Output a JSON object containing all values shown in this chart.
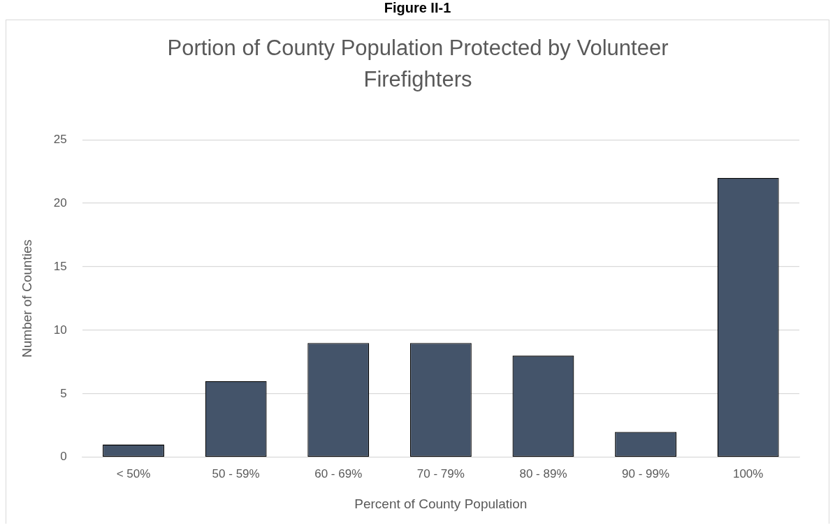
{
  "chart_data": {
    "type": "bar",
    "title": "Portion of County Population Protected by Volunteer Firefighters",
    "annotations": [
      "Figure II-1"
    ],
    "xlabel": "Percent of County Population",
    "ylabel": "Number of Counties",
    "categories": [
      "< 50%",
      "50 - 59%",
      "60 - 69%",
      "70 - 79%",
      "80 - 89%",
      "90 - 99%",
      "100%"
    ],
    "values": [
      1,
      6,
      9,
      9,
      8,
      2,
      22
    ],
    "color": "#44546a",
    "ylim": [
      0,
      25
    ],
    "yticks": [
      0,
      5,
      10,
      15,
      20,
      25
    ],
    "grid": "y",
    "legend": false
  }
}
